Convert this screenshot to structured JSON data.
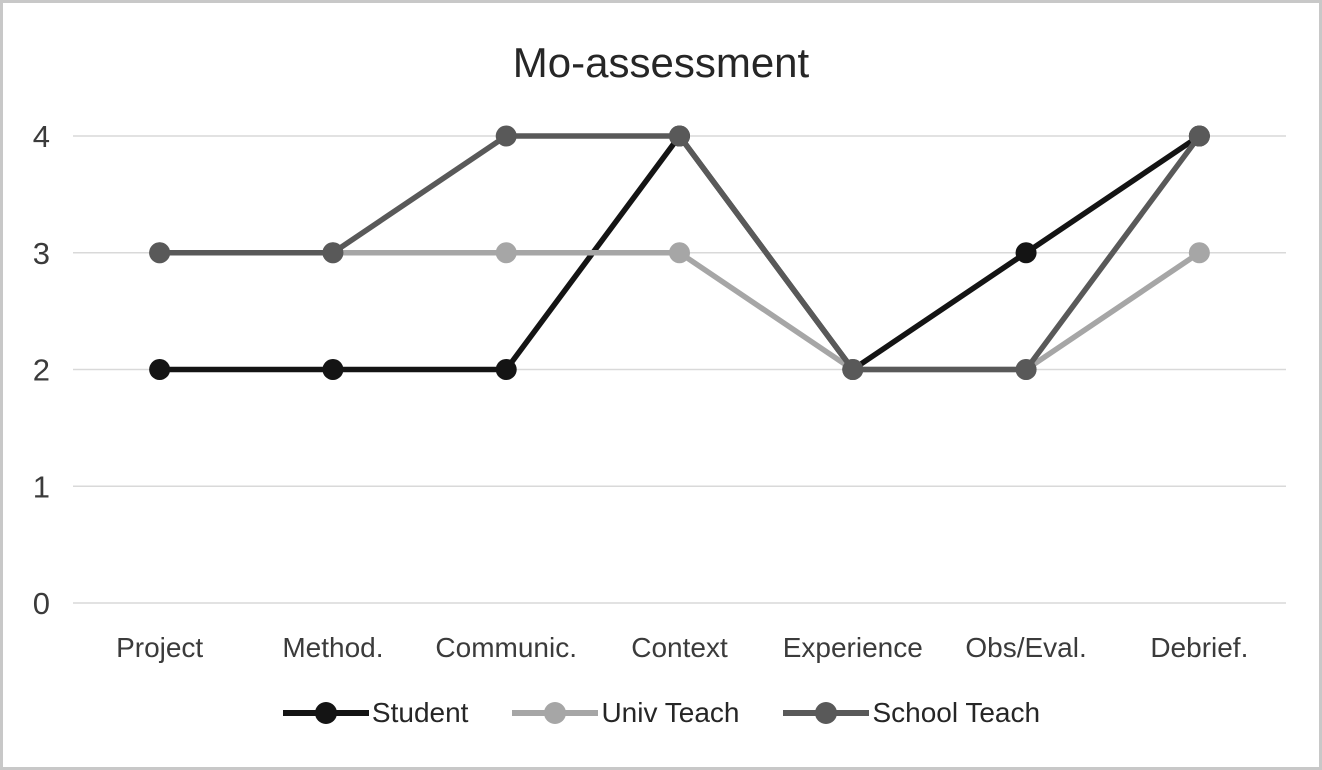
{
  "chart_data": {
    "type": "line",
    "title": "Mo-assessment",
    "categories": [
      "Project",
      "Method.",
      "Communic.",
      "Context",
      "Experience",
      "Obs/Eval.",
      "Debrief."
    ],
    "series": [
      {
        "name": "Student",
        "color": "#141414",
        "values": [
          2,
          2,
          2,
          4,
          2,
          3,
          4
        ]
      },
      {
        "name": "Univ Teach",
        "color": "#a6a6a6",
        "values": [
          3,
          3,
          3,
          3,
          2,
          2,
          3
        ]
      },
      {
        "name": "School Teach",
        "color": "#595959",
        "values": [
          3,
          3,
          4,
          4,
          2,
          2,
          4
        ]
      }
    ],
    "xlabel": "",
    "ylabel": "",
    "ylim": [
      0,
      4
    ],
    "yticks": [
      0,
      1,
      2,
      3,
      4
    ],
    "grid": true,
    "legend_position": "bottom",
    "gridline_color": "#d9d9d9",
    "axis_label_color": "#3b3b3b",
    "title_color": "#262626",
    "frame_color": "#c8c8c8",
    "background": "#ffffff"
  }
}
